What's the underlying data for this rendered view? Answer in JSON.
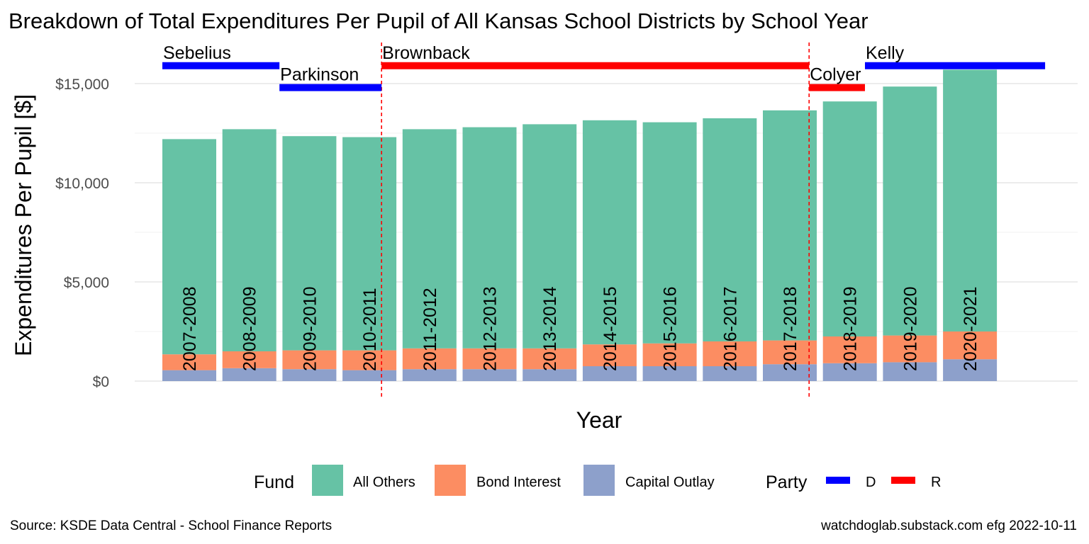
{
  "chart_data": {
    "type": "bar",
    "stacked": true,
    "title": "Breakdown of Total Expenditures Per Pupil of All Kansas School Districts by School Year",
    "xlabel": "Year",
    "ylabel": "Expenditures Per Pupil [$]",
    "ylim": [
      0,
      16000
    ],
    "yticks": [
      0,
      5000,
      10000,
      15000
    ],
    "ytick_labels": [
      "$0",
      "$5,000",
      "$10,000",
      "$15,000"
    ],
    "grid": true,
    "categories": [
      "2007-2008",
      "2008-2009",
      "2009-2010",
      "2010-2011",
      "2011-2012",
      "2012-2013",
      "2013-2014",
      "2014-2015",
      "2015-2016",
      "2016-2017",
      "2017-2018",
      "2018-2019",
      "2019-2020",
      "2020-2021"
    ],
    "series": [
      {
        "name": "Capital Outlay",
        "color": "#8DA0CB",
        "values": [
          550,
          650,
          600,
          550,
          600,
          600,
          600,
          750,
          750,
          750,
          850,
          900,
          950,
          1100
        ]
      },
      {
        "name": "Bond Interest",
        "color": "#FC8D62",
        "values": [
          800,
          850,
          950,
          1000,
          1050,
          1050,
          1050,
          1100,
          1150,
          1250,
          1200,
          1350,
          1350,
          1400
        ]
      },
      {
        "name": "All Others",
        "color": "#66C2A5",
        "values": [
          10850,
          11200,
          10800,
          10750,
          11050,
          11150,
          11300,
          11300,
          11150,
          11250,
          11600,
          11850,
          12550,
          13200
        ]
      }
    ],
    "governors": [
      {
        "name": "Sebelius",
        "party": "D",
        "start": 0.0,
        "end": 1.95,
        "value": 15900
      },
      {
        "name": "Parkinson",
        "party": "D",
        "start": 1.95,
        "end": 3.65,
        "value": 14800
      },
      {
        "name": "Brownback",
        "party": "R",
        "start": 3.65,
        "end": 10.77,
        "value": 15900
      },
      {
        "name": "Colyer",
        "party": "R",
        "start": 10.77,
        "end": 11.7,
        "value": 14800
      },
      {
        "name": "Kelly",
        "party": "D",
        "start": 11.7,
        "end": 14.7,
        "value": 15900
      }
    ],
    "party_colors": {
      "D": "#0000FF",
      "R": "#FF0000"
    },
    "vlines": [
      3.65,
      10.77
    ],
    "legend": {
      "position": "bottom",
      "fund_title": "Fund",
      "fund_items": [
        {
          "label": "All Others",
          "color": "#66C2A5"
        },
        {
          "label": "Bond Interest",
          "color": "#FC8D62"
        },
        {
          "label": "Capital Outlay",
          "color": "#8DA0CB"
        }
      ],
      "party_title": "Party",
      "party_items": [
        {
          "label": "D",
          "color": "#0000FF"
        },
        {
          "label": "R",
          "color": "#FF0000"
        }
      ]
    }
  },
  "caption": {
    "left": "Source:  KSDE Data Central - School Finance Reports",
    "right": "watchdoglab.substack.com  efg 2022-10-11"
  }
}
